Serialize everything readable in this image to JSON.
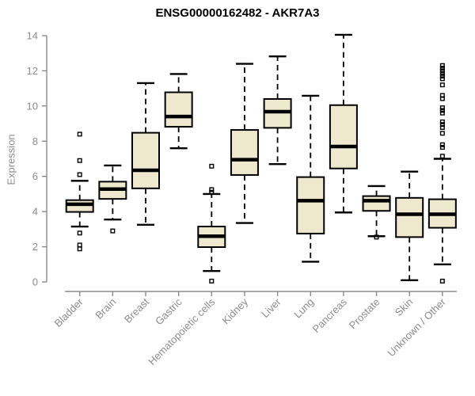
{
  "chart_data": {
    "type": "boxplot",
    "title": "ENSG00000162482 - AKR7A3",
    "ylabel": "Expression",
    "xlabel": "",
    "ylim": [
      0,
      14
    ],
    "yticks": [
      0,
      2,
      4,
      6,
      8,
      10,
      12,
      14
    ],
    "grid": false,
    "legend": false,
    "categories": [
      "Bladder",
      "Brain",
      "Breast",
      "Gastric",
      "Hematopoietic cells",
      "Kidney",
      "Liver",
      "Lung",
      "Pancreas",
      "Prostate",
      "Skin",
      "Unknown / Other"
    ],
    "series": [
      {
        "name": "Bladder",
        "whisker_low": 3.15,
        "q1": 3.98,
        "median": 4.42,
        "q3": 4.65,
        "whisker_high": 5.75,
        "outliers": [
          8.4,
          6.9,
          6.1,
          2.78,
          2.1,
          1.88
        ]
      },
      {
        "name": "Brain",
        "whisker_low": 3.55,
        "q1": 4.72,
        "median": 5.28,
        "q3": 5.7,
        "whisker_high": 6.62,
        "outliers": [
          2.9
        ]
      },
      {
        "name": "Breast",
        "whisker_low": 3.25,
        "q1": 5.32,
        "median": 6.35,
        "q3": 8.48,
        "whisker_high": 11.3,
        "outliers": []
      },
      {
        "name": "Gastric",
        "whisker_low": 7.6,
        "q1": 8.82,
        "median": 9.4,
        "q3": 10.78,
        "whisker_high": 11.82,
        "outliers": []
      },
      {
        "name": "Hematopoietic cells",
        "whisker_low": 0.62,
        "q1": 1.98,
        "median": 2.6,
        "q3": 3.15,
        "whisker_high": 5.0,
        "outliers": [
          6.58,
          5.25,
          5.1,
          0.05
        ]
      },
      {
        "name": "Kidney",
        "whisker_low": 3.35,
        "q1": 6.08,
        "median": 6.95,
        "q3": 8.64,
        "whisker_high": 12.4,
        "outliers": []
      },
      {
        "name": "Liver",
        "whisker_low": 6.7,
        "q1": 8.76,
        "median": 9.68,
        "q3": 10.4,
        "whisker_high": 12.82,
        "outliers": []
      },
      {
        "name": "Lung",
        "whisker_low": 1.15,
        "q1": 2.75,
        "median": 4.62,
        "q3": 5.96,
        "whisker_high": 10.58,
        "outliers": []
      },
      {
        "name": "Pancreas",
        "whisker_low": 3.95,
        "q1": 6.45,
        "median": 7.7,
        "q3": 10.05,
        "whisker_high": 14.05,
        "outliers": []
      },
      {
        "name": "Prostate",
        "whisker_low": 2.6,
        "q1": 4.04,
        "median": 4.62,
        "q3": 4.88,
        "whisker_high": 5.45,
        "outliers": [
          2.55
        ]
      },
      {
        "name": "Skin",
        "whisker_low": 0.1,
        "q1": 2.55,
        "median": 3.85,
        "q3": 4.78,
        "whisker_high": 6.27,
        "outliers": []
      },
      {
        "name": "Unknown / Other",
        "whisker_low": 1.0,
        "q1": 3.08,
        "median": 3.85,
        "q3": 4.7,
        "whisker_high": 7.0,
        "outliers": [
          12.3,
          12.15,
          12.0,
          11.85,
          11.7,
          11.55,
          11.2,
          10.6,
          10.42,
          9.9,
          9.75,
          9.6,
          9.1,
          8.95,
          8.78,
          8.45,
          7.8,
          7.65,
          7.15,
          0.05
        ]
      }
    ],
    "colors": {
      "box_fill": "#EDE8CE",
      "box_stroke": "#000000",
      "median": "#000000",
      "whisker": "#000000",
      "axis": "#8c8c8c",
      "tick_label": "#8c8c8c",
      "title": "#000000",
      "background": "#ffffff"
    }
  }
}
